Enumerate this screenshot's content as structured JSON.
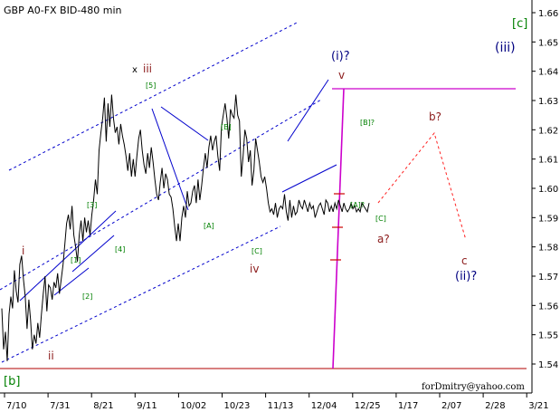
{
  "chart_data": {
    "type": "line",
    "title": "GBP A0-FX BID-480 min",
    "credit": "forDmitry@yahoo.com",
    "x_ticks": [
      "7/10",
      "7/31",
      "8/21",
      "9/11",
      "10/02",
      "10/23",
      "11/13",
      "12/04",
      "12/25",
      "1/17",
      "2/07",
      "2/28",
      "3/21"
    ],
    "y_ticks": [
      "1.66",
      "1.65",
      "1.64",
      "1.63",
      "1.62",
      "1.61",
      "1.60",
      "1.59",
      "1.58",
      "1.57",
      "1.56",
      "1.55",
      "1.54"
    ],
    "ylim": [
      1.534,
      1.664
    ],
    "grid": false,
    "series": [
      {
        "x": [
          0,
          2,
          4,
          6,
          8,
          10,
          12,
          14,
          16,
          18,
          20,
          22,
          24,
          26,
          28,
          30,
          32,
          34,
          36,
          38,
          40,
          42,
          44,
          46,
          48,
          50,
          52,
          54,
          56,
          58,
          60,
          62,
          64,
          66,
          68,
          70,
          72,
          74,
          76,
          78,
          80,
          82,
          84,
          86,
          88,
          90,
          92,
          94,
          96,
          98,
          100,
          102,
          104,
          106,
          108,
          110,
          112,
          114,
          116,
          118,
          120,
          122,
          124,
          126,
          128,
          130,
          132,
          134,
          136,
          138,
          140,
          142,
          144,
          146,
          148,
          150,
          152,
          154,
          156,
          158,
          160,
          162,
          164,
          166,
          168,
          170,
          172,
          174,
          176,
          178,
          180,
          182,
          184,
          186,
          188,
          190,
          192,
          194,
          196,
          198,
          200,
          202,
          204,
          206,
          208,
          210,
          212,
          214,
          216,
          218,
          220,
          222,
          224,
          226,
          228,
          230,
          232,
          234,
          236,
          238,
          240,
          242,
          244,
          246,
          248,
          250,
          252,
          254,
          256,
          258,
          260,
          262,
          264,
          266,
          268,
          270,
          272,
          274,
          276,
          278,
          280,
          282,
          284,
          286,
          288,
          290,
          292,
          294,
          296,
          298,
          300,
          302,
          304,
          306,
          308,
          310,
          312,
          314,
          316,
          318,
          320,
          322,
          324,
          326,
          328,
          330,
          332,
          334,
          336,
          338,
          340,
          342,
          344,
          346,
          348,
          350,
          352,
          354,
          356,
          358,
          360,
          362,
          364,
          366,
          368,
          370,
          372,
          374,
          376,
          378,
          380,
          382,
          384,
          386,
          388,
          390,
          392,
          394,
          396,
          398,
          400,
          402,
          404,
          406,
          408,
          410
        ],
        "values": [
          1.559,
          1.545,
          1.551,
          1.541,
          1.557,
          1.563,
          1.559,
          1.572,
          1.565,
          1.561,
          1.574,
          1.577,
          1.569,
          1.563,
          1.552,
          1.562,
          1.555,
          1.545,
          1.55,
          1.547,
          1.554,
          1.549,
          1.557,
          1.564,
          1.57,
          1.558,
          1.567,
          1.566,
          1.562,
          1.568,
          1.566,
          1.571,
          1.564,
          1.569,
          1.574,
          1.581,
          1.588,
          1.591,
          1.586,
          1.594,
          1.584,
          1.58,
          1.575,
          1.584,
          1.589,
          1.582,
          1.59,
          1.585,
          1.589,
          1.584,
          1.591,
          1.596,
          1.603,
          1.598,
          1.613,
          1.619,
          1.624,
          1.631,
          1.616,
          1.629,
          1.621,
          1.632,
          1.624,
          1.619,
          1.621,
          1.615,
          1.622,
          1.618,
          1.615,
          1.611,
          1.606,
          1.612,
          1.604,
          1.61,
          1.604,
          1.611,
          1.617,
          1.62,
          1.613,
          1.608,
          1.605,
          1.612,
          1.607,
          1.614,
          1.609,
          1.603,
          1.598,
          1.596,
          1.602,
          1.607,
          1.6,
          1.605,
          1.603,
          1.598,
          1.597,
          1.593,
          1.587,
          1.582,
          1.588,
          1.582,
          1.59,
          1.594,
          1.59,
          1.599,
          1.594,
          1.595,
          1.599,
          1.601,
          1.595,
          1.603,
          1.596,
          1.601,
          1.607,
          1.612,
          1.607,
          1.614,
          1.618,
          1.613,
          1.616,
          1.618,
          1.611,
          1.606,
          1.621,
          1.625,
          1.629,
          1.624,
          1.617,
          1.627,
          1.625,
          1.624,
          1.632,
          1.625,
          1.623,
          1.604,
          1.611,
          1.62,
          1.617,
          1.609,
          1.613,
          1.601,
          1.606,
          1.617,
          1.613,
          1.609,
          1.604,
          1.602,
          1.604,
          1.6,
          1.595,
          1.592,
          1.593,
          1.591,
          1.595,
          1.59,
          1.593,
          1.594,
          1.593,
          1.598,
          1.592,
          1.589,
          1.596,
          1.59,
          1.594,
          1.591,
          1.592,
          1.596,
          1.594,
          1.593,
          1.596,
          1.594,
          1.592,
          1.595,
          1.593,
          1.594,
          1.59,
          1.592,
          1.594,
          1.595,
          1.593,
          1.591,
          1.596,
          1.595,
          1.592,
          1.594,
          1.592,
          1.595,
          1.593,
          1.596,
          1.594,
          1.592,
          1.595,
          1.593,
          1.592,
          1.593,
          1.595,
          1.593,
          1.594,
          1.592,
          1.593,
          1.592,
          1.595,
          1.594,
          1.593,
          1.592,
          1.595,
          1.593
        ]
      }
    ],
    "wave_labels": {
      "c_bracket": "[c]",
      "iii_paren": "(iii)",
      "i_paren": "(i)?",
      "ii_paren": "(ii)?",
      "x": "x",
      "iii": "iii",
      "i": "i",
      "ii": "ii",
      "iv": "iv",
      "v": "v",
      "b_bracket": "[b]",
      "w5": "[5]",
      "w3": "[3]",
      "w1": "[1]",
      "w2": "[2]",
      "w4": "[4]",
      "wA": "[A]",
      "wB": "[B]",
      "wC": "[C]",
      "wB2": "[B]?",
      "wA2": "[A]?",
      "wC2": "[C]",
      "a": "a?",
      "b": "b?",
      "c": "c"
    }
  }
}
